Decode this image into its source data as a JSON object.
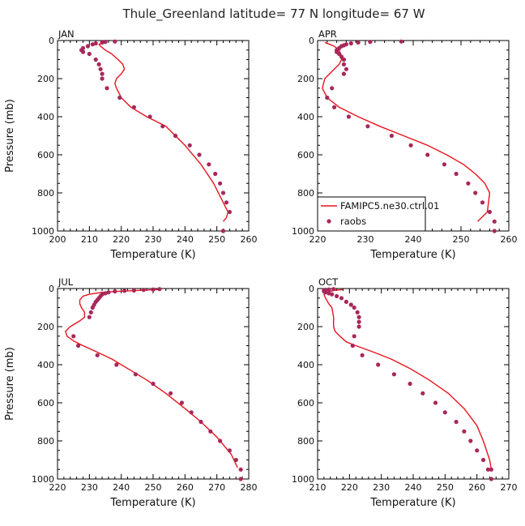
{
  "figure_title": "Thule_Greenland  latitude= 77 N longitude= 67 W",
  "colors": {
    "model": "#e8141e",
    "obs": "#a8285a",
    "axis": "#000000"
  },
  "legend": {
    "model_label": "FAMIPC5.ne30.ctrl.01",
    "obs_label": "raobs",
    "placement": "bottom-left of APR panel"
  },
  "chart_data": [
    {
      "type": "line",
      "panel": "JAN",
      "xlabel": "Temperature (K)",
      "ylabel": "Pressure (mb)",
      "xlim": [
        200,
        260
      ],
      "ylim": [
        0,
        1000
      ],
      "y_inverted": true,
      "xticks": [
        200,
        210,
        220,
        230,
        240,
        250,
        260
      ],
      "yticks": [
        0,
        200,
        400,
        600,
        800,
        1000
      ],
      "show_xlabel": true,
      "show_ylabel": true,
      "series": [
        {
          "name": "FAMIPC5.ne30.ctrl.01",
          "kind": "line",
          "x": [
            215,
            213,
            213.5,
            215,
            217,
            219,
            220.5,
            221,
            220,
            218.5,
            218,
            218.5,
            220,
            223,
            228,
            234,
            240,
            245,
            249,
            252,
            253.5,
            253,
            252
          ],
          "y": [
            10,
            20,
            30,
            50,
            70,
            100,
            125,
            150,
            175,
            200,
            225,
            250,
            300,
            350,
            400,
            450,
            550,
            650,
            750,
            850,
            900,
            930,
            950
          ]
        },
        {
          "name": "raobs",
          "kind": "scatter",
          "x": [
            218,
            215,
            214,
            212,
            211,
            209.5,
            208,
            207.5,
            208,
            210,
            212,
            213,
            213.5,
            214,
            214,
            215.5,
            219.5,
            224,
            229,
            233,
            237,
            241.5,
            244.5,
            247.5,
            249.5,
            251,
            252,
            253,
            254,
            252
          ],
          "y": [
            5,
            7,
            10,
            15,
            20,
            30,
            40,
            50,
            60,
            70,
            100,
            125,
            150,
            175,
            200,
            250,
            300,
            350,
            400,
            450,
            500,
            550,
            600,
            650,
            700,
            750,
            800,
            850,
            900,
            1000
          ]
        }
      ]
    },
    {
      "type": "line",
      "panel": "APR",
      "xlabel": "Temperature (K)",
      "ylabel": "",
      "xlim": [
        220,
        260
      ],
      "ylim": [
        0,
        1000
      ],
      "y_inverted": true,
      "xticks": [
        220,
        230,
        240,
        250,
        260
      ],
      "yticks": [
        0,
        200,
        400,
        600,
        800,
        1000
      ],
      "show_xlabel": true,
      "show_ylabel": false,
      "series": [
        {
          "name": "FAMIPC5.ne30.ctrl.01",
          "kind": "line",
          "x": [
            221.5,
            222.5,
            223.5,
            224.5,
            225,
            225,
            224.5,
            223.5,
            222.5,
            221.5,
            221,
            222,
            224.5,
            228.5,
            233,
            238,
            243,
            247,
            250.5,
            253,
            255,
            256,
            255.5,
            253.5
          ],
          "y": [
            10,
            20,
            30,
            50,
            80,
            100,
            125,
            150,
            175,
            200,
            250,
            300,
            350,
            400,
            450,
            500,
            550,
            600,
            650,
            700,
            750,
            800,
            900,
            950
          ]
        },
        {
          "name": "raobs",
          "kind": "scatter",
          "x": [
            237.5,
            231,
            228.5,
            227,
            226,
            225.5,
            225,
            224.5,
            224,
            224,
            224.5,
            225,
            225.5,
            225.5,
            226,
            225.5,
            223,
            222,
            223.5,
            226.5,
            230.5,
            235.5,
            239.5,
            243,
            246.5,
            249,
            251.5,
            253,
            254.5,
            256,
            257,
            257
          ],
          "y": [
            5,
            7,
            10,
            15,
            20,
            25,
            30,
            40,
            50,
            60,
            70,
            85,
            100,
            125,
            150,
            175,
            250,
            300,
            350,
            400,
            450,
            500,
            550,
            600,
            650,
            700,
            750,
            800,
            850,
            900,
            950,
            1000
          ]
        }
      ]
    },
    {
      "type": "line",
      "panel": "JUL",
      "xlabel": "Temperature (K)",
      "ylabel": "Pressure (mb)",
      "xlim": [
        220,
        280
      ],
      "ylim": [
        0,
        1000
      ],
      "y_inverted": true,
      "xticks": [
        220,
        230,
        240,
        250,
        260,
        270,
        280
      ],
      "yticks": [
        0,
        200,
        400,
        600,
        800,
        1000
      ],
      "show_xlabel": true,
      "show_ylabel": true,
      "series": [
        {
          "name": "FAMIPC5.ne30.ctrl.01",
          "kind": "line",
          "x": [
            252,
            245,
            239,
            234,
            230,
            228,
            227,
            227,
            227.5,
            228.5,
            228.5,
            227,
            224,
            222.5,
            223,
            225,
            228,
            232,
            237,
            242,
            248,
            254,
            260,
            265,
            270,
            274.5,
            276.5
          ],
          "y": [
            5,
            10,
            15,
            20,
            30,
            40,
            60,
            80,
            100,
            125,
            150,
            170,
            200,
            225,
            250,
            275,
            300,
            330,
            370,
            420,
            480,
            550,
            630,
            700,
            780,
            870,
            940
          ]
        },
        {
          "name": "raobs",
          "kind": "scatter",
          "x": [
            252,
            250,
            247,
            244,
            241,
            238,
            236,
            235,
            234,
            233.5,
            233,
            232.5,
            232,
            231.5,
            231,
            230.5,
            230,
            225,
            226.5,
            232.5,
            238.5,
            244.5,
            250,
            255.5,
            259,
            262,
            265,
            268,
            271,
            274,
            276,
            277.5,
            277.5
          ],
          "y": [
            3,
            5,
            7,
            10,
            12,
            15,
            20,
            25,
            30,
            40,
            50,
            60,
            70,
            85,
            100,
            125,
            150,
            250,
            300,
            350,
            400,
            450,
            500,
            550,
            600,
            650,
            700,
            750,
            800,
            850,
            900,
            950,
            1000
          ]
        }
      ]
    },
    {
      "type": "line",
      "panel": "OCT",
      "xlabel": "Temperature (K)",
      "ylabel": "",
      "xlim": [
        210,
        270
      ],
      "ylim": [
        0,
        1000
      ],
      "y_inverted": true,
      "xticks": [
        210,
        220,
        230,
        240,
        250,
        260,
        270
      ],
      "yticks": [
        0,
        200,
        400,
        600,
        800,
        1000
      ],
      "show_xlabel": true,
      "show_ylabel": false,
      "series": [
        {
          "name": "FAMIPC5.ne30.ctrl.01",
          "kind": "line",
          "x": [
            218,
            215,
            213,
            212,
            212.5,
            213.5,
            214.5,
            215,
            215,
            215.5,
            217,
            219,
            222,
            227,
            233,
            239,
            245,
            251,
            256,
            260,
            262,
            264,
            264.5
          ],
          "y": [
            5,
            10,
            20,
            30,
            50,
            80,
            100,
            150,
            200,
            225,
            250,
            280,
            300,
            330,
            370,
            420,
            480,
            550,
            630,
            720,
            800,
            900,
            950
          ]
        },
        {
          "name": "raobs",
          "kind": "scatter",
          "x": [
            215,
            213.5,
            212.5,
            212,
            212,
            212.5,
            213.5,
            214.5,
            216,
            217.5,
            219,
            220.5,
            221.5,
            222.5,
            223,
            223,
            223,
            221.5,
            221,
            224,
            229,
            234,
            239,
            243,
            247,
            250,
            253.5,
            256,
            258,
            260,
            262,
            263.5,
            264.5,
            264.5
          ],
          "y": [
            3,
            5,
            7,
            10,
            15,
            20,
            25,
            30,
            40,
            50,
            70,
            85,
            100,
            125,
            150,
            175,
            200,
            250,
            300,
            350,
            400,
            450,
            500,
            550,
            600,
            650,
            700,
            750,
            800,
            850,
            900,
            950,
            950,
            1000
          ]
        }
      ]
    }
  ]
}
